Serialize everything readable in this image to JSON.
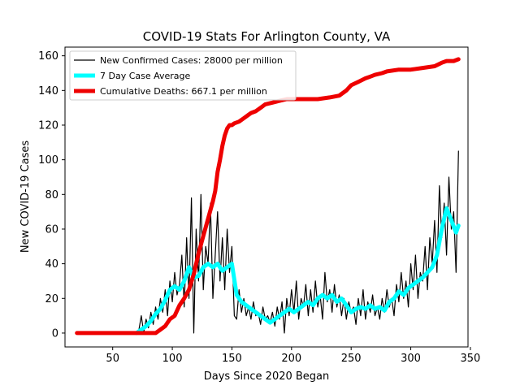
{
  "chart_data": {
    "type": "line",
    "title": "COVID-19 Stats For Arlington County, VA",
    "xlabel": "Days Since 2020 Began",
    "ylabel": "New COVID-19 Cases",
    "xlim": [
      10,
      348
    ],
    "ylim": [
      -8,
      165
    ],
    "xticks": [
      50,
      100,
      150,
      200,
      250,
      300,
      350
    ],
    "yticks": [
      0,
      20,
      40,
      60,
      80,
      100,
      120,
      140,
      160
    ],
    "grid": false,
    "legend_position": "top-left",
    "series": [
      {
        "name": "New Confirmed Cases: 28000 per million",
        "color": "#000000",
        "x": [
          70,
          72,
          74,
          76,
          78,
          80,
          82,
          84,
          86,
          88,
          90,
          92,
          94,
          96,
          98,
          100,
          102,
          104,
          106,
          108,
          110,
          112,
          114,
          116,
          118,
          120,
          122,
          124,
          126,
          128,
          130,
          132,
          134,
          136,
          138,
          140,
          142,
          144,
          146,
          148,
          150,
          152,
          154,
          156,
          158,
          160,
          162,
          164,
          166,
          168,
          170,
          172,
          174,
          176,
          178,
          180,
          182,
          184,
          186,
          188,
          190,
          192,
          194,
          196,
          198,
          200,
          202,
          204,
          206,
          208,
          210,
          212,
          214,
          216,
          218,
          220,
          222,
          224,
          226,
          228,
          230,
          232,
          234,
          236,
          238,
          240,
          242,
          244,
          246,
          248,
          250,
          252,
          254,
          256,
          258,
          260,
          262,
          264,
          266,
          268,
          270,
          272,
          274,
          276,
          278,
          280,
          282,
          284,
          286,
          288,
          290,
          292,
          294,
          296,
          298,
          300,
          302,
          304,
          306,
          308,
          310,
          312,
          314,
          316,
          318,
          320,
          322,
          324,
          326,
          328,
          330,
          332,
          334,
          336,
          338,
          340
        ],
        "values": [
          0,
          2,
          10,
          0,
          8,
          3,
          12,
          5,
          15,
          8,
          20,
          12,
          25,
          10,
          30,
          18,
          35,
          22,
          28,
          45,
          15,
          55,
          20,
          78,
          0,
          60,
          30,
          80,
          25,
          50,
          40,
          75,
          20,
          45,
          70,
          30,
          55,
          25,
          60,
          35,
          50,
          10,
          8,
          25,
          12,
          20,
          10,
          15,
          8,
          18,
          10,
          12,
          5,
          15,
          8,
          10,
          6,
          12,
          4,
          15,
          8,
          18,
          0,
          20,
          10,
          25,
          12,
          30,
          8,
          20,
          15,
          28,
          10,
          25,
          12,
          30,
          15,
          22,
          8,
          35,
          18,
          25,
          12,
          28,
          15,
          22,
          10,
          20,
          8,
          18,
          12,
          15,
          5,
          20,
          10,
          25,
          8,
          18,
          12,
          22,
          10,
          15,
          8,
          20,
          12,
          25,
          15,
          20,
          10,
          28,
          18,
          35,
          20,
          30,
          15,
          40,
          25,
          45,
          20,
          35,
          30,
          50,
          25,
          55,
          40,
          65,
          35,
          85,
          55,
          75,
          45,
          90,
          60,
          70,
          35,
          105
        ]
      },
      {
        "name": "7 Day Case Average",
        "color": "#00ffff",
        "x": [
          70,
          74,
          78,
          82,
          86,
          90,
          94,
          98,
          102,
          106,
          110,
          114,
          118,
          122,
          126,
          130,
          134,
          138,
          142,
          146,
          150,
          154,
          158,
          162,
          166,
          170,
          174,
          178,
          182,
          186,
          190,
          194,
          198,
          202,
          206,
          210,
          214,
          218,
          222,
          226,
          230,
          234,
          238,
          242,
          246,
          250,
          254,
          258,
          262,
          266,
          270,
          274,
          278,
          282,
          286,
          290,
          294,
          298,
          302,
          306,
          310,
          314,
          318,
          322,
          326,
          330,
          334,
          338,
          340
        ],
        "values": [
          0,
          2,
          4,
          7,
          11,
          14,
          19,
          25,
          27,
          25,
          30,
          38,
          32,
          33,
          38,
          40,
          38,
          40,
          36,
          38,
          40,
          22,
          18,
          16,
          14,
          12,
          10,
          8,
          6,
          8,
          10,
          12,
          14,
          12,
          14,
          16,
          18,
          16,
          20,
          22,
          20,
          22,
          18,
          20,
          16,
          12,
          14,
          15,
          14,
          16,
          14,
          15,
          13,
          18,
          20,
          24,
          22,
          26,
          28,
          30,
          32,
          35,
          38,
          45,
          60,
          72,
          65,
          58,
          62
        ]
      },
      {
        "name": "Cumulative Deaths: 667.1 per million",
        "color": "#ee0000",
        "x": [
          20,
          80,
          86,
          88,
          90,
          94,
          98,
          102,
          106,
          110,
          114,
          118,
          122,
          126,
          130,
          134,
          136,
          138,
          140,
          142,
          144,
          146,
          148,
          150,
          152,
          156,
          160,
          164,
          166,
          170,
          174,
          178,
          184,
          190,
          196,
          202,
          210,
          222,
          232,
          240,
          246,
          250,
          256,
          262,
          266,
          270,
          276,
          280,
          290,
          300,
          310,
          320,
          326,
          330,
          336,
          340
        ],
        "values": [
          0,
          0,
          0,
          1,
          2,
          4,
          8,
          10,
          16,
          20,
          25,
          34,
          46,
          56,
          66,
          76,
          82,
          93,
          100,
          108,
          114,
          118,
          120,
          120,
          121,
          122,
          124,
          126,
          127,
          128,
          130,
          132,
          133,
          134,
          135,
          135,
          135,
          135,
          136,
          137,
          140,
          143,
          145,
          147,
          148,
          149,
          150,
          151,
          152,
          152,
          153,
          154,
          156,
          157,
          157,
          158
        ]
      }
    ]
  }
}
